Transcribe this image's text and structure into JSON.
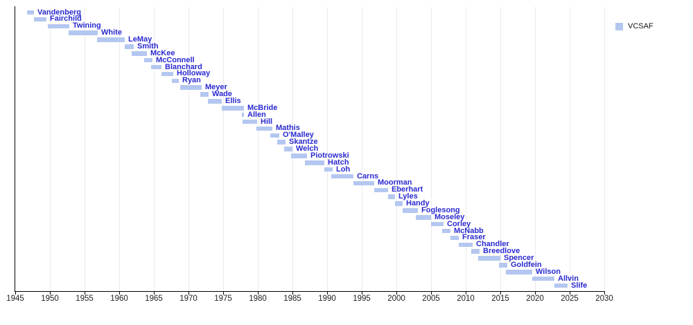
{
  "legend": {
    "label": "VCSAF",
    "swatch_color": "#b4c7f0"
  },
  "colors": {
    "bar_fill": "#b4c7f0",
    "bar_label_text": "#2929d0",
    "axis_line": "#000000",
    "tick_label_text": "#1c1c1c",
    "gridline": "#eaeaef",
    "background": "#ffffff"
  },
  "chart_data": {
    "type": "bar",
    "variant": "timeline-gantt",
    "title": "",
    "xlabel": "",
    "ylabel": "",
    "grid": "vertical-only",
    "legend_position": "top-right",
    "legend_entries": [
      {
        "label": "VCSAF",
        "color": "#b4c7f0"
      }
    ],
    "x_axis": {
      "min": 1945,
      "max": 2030,
      "tick_interval": 5,
      "tick_labels": [
        "1945",
        "1950",
        "1955",
        "1960",
        "1965",
        "1970",
        "1975",
        "1980",
        "1985",
        "1990",
        "1995",
        "2000",
        "2005",
        "2010",
        "2015",
        "2020",
        "2025",
        "2030"
      ]
    },
    "series": [
      {
        "name": "Vandenberg",
        "start": 1946.7,
        "end": 1947.7
      },
      {
        "name": "Fairchild",
        "start": 1947.7,
        "end": 1949.5
      },
      {
        "name": "Twining",
        "start": 1949.7,
        "end": 1952.8
      },
      {
        "name": "White",
        "start": 1952.7,
        "end": 1956.9
      },
      {
        "name": "LeMay",
        "start": 1956.8,
        "end": 1960.8
      },
      {
        "name": "Smith",
        "start": 1960.8,
        "end": 1962.1
      },
      {
        "name": "McKee",
        "start": 1961.8,
        "end": 1964.0
      },
      {
        "name": "McConnell",
        "start": 1963.6,
        "end": 1964.8
      },
      {
        "name": "Blanchard",
        "start": 1964.6,
        "end": 1966.1
      },
      {
        "name": "Holloway",
        "start": 1966.1,
        "end": 1967.8
      },
      {
        "name": "Ryan",
        "start": 1967.6,
        "end": 1968.6
      },
      {
        "name": "Meyer",
        "start": 1968.8,
        "end": 1971.9
      },
      {
        "name": "Wade",
        "start": 1971.7,
        "end": 1972.9
      },
      {
        "name": "Ellis",
        "start": 1972.8,
        "end": 1974.8
      },
      {
        "name": "McBride",
        "start": 1974.8,
        "end": 1978.0
      },
      {
        "name": "Allen",
        "start": 1977.7,
        "end": 1978.0
      },
      {
        "name": "Hill",
        "start": 1977.8,
        "end": 1979.9
      },
      {
        "name": "Mathis",
        "start": 1979.8,
        "end": 1982.1
      },
      {
        "name": "O'Malley",
        "start": 1981.8,
        "end": 1983.1
      },
      {
        "name": "Skantze",
        "start": 1982.8,
        "end": 1984.0
      },
      {
        "name": "Welch",
        "start": 1983.8,
        "end": 1985.0
      },
      {
        "name": "Piotrowski",
        "start": 1984.8,
        "end": 1987.1
      },
      {
        "name": "Hatch",
        "start": 1986.8,
        "end": 1989.6
      },
      {
        "name": "Loh",
        "start": 1989.6,
        "end": 1990.8
      },
      {
        "name": "Carns",
        "start": 1990.6,
        "end": 1993.8
      },
      {
        "name": "Moorman",
        "start": 1993.8,
        "end": 1996.8
      },
      {
        "name": "Eberhart",
        "start": 1996.8,
        "end": 1998.8
      },
      {
        "name": "Lyles",
        "start": 1998.8,
        "end": 1999.8
      },
      {
        "name": "Handy",
        "start": 1999.8,
        "end": 2000.9
      },
      {
        "name": "Foglesong",
        "start": 2000.9,
        "end": 2003.1
      },
      {
        "name": "Moseley",
        "start": 2002.8,
        "end": 2005.0
      },
      {
        "name": "Corley",
        "start": 2005.0,
        "end": 2006.8
      },
      {
        "name": "McNabb",
        "start": 2006.6,
        "end": 2007.8
      },
      {
        "name": "Fraser",
        "start": 2007.8,
        "end": 2009.0
      },
      {
        "name": "Chandler",
        "start": 2009.0,
        "end": 2011.0
      },
      {
        "name": "Breedlove",
        "start": 2010.8,
        "end": 2012.0
      },
      {
        "name": "Spencer",
        "start": 2011.8,
        "end": 2015.0
      },
      {
        "name": "Goldfein",
        "start": 2014.8,
        "end": 2016.0
      },
      {
        "name": "Wilson",
        "start": 2015.8,
        "end": 2019.6
      },
      {
        "name": "Allvin",
        "start": 2019.6,
        "end": 2022.8
      },
      {
        "name": "Slife",
        "start": 2022.8,
        "end": 2024.7
      }
    ]
  }
}
